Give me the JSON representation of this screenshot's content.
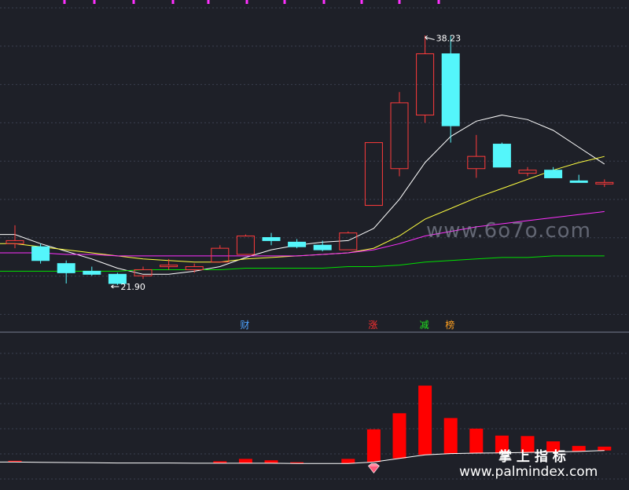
{
  "chart_data": [
    {
      "type": "candlestick",
      "panel": "price",
      "ylim": [
        20,
        40
      ],
      "grid": true,
      "candles": [
        {
          "o": 24.6,
          "h": 25.8,
          "l": 24.3,
          "c": 24.8,
          "color": "red"
        },
        {
          "o": 24.4,
          "h": 24.6,
          "l": 23.3,
          "c": 23.5,
          "color": "cyan"
        },
        {
          "o": 23.3,
          "h": 23.5,
          "l": 22.0,
          "c": 22.7,
          "color": "cyan"
        },
        {
          "o": 22.8,
          "h": 23.1,
          "l": 22.5,
          "c": 22.6,
          "color": "cyan"
        },
        {
          "o": 22.6,
          "h": 22.7,
          "l": 21.9,
          "c": 22.0,
          "color": "cyan"
        },
        {
          "o": 22.5,
          "h": 23.1,
          "l": 22.3,
          "c": 22.9,
          "color": "red"
        },
        {
          "o": 23.1,
          "h": 23.6,
          "l": 22.9,
          "c": 23.2,
          "color": "red"
        },
        {
          "o": 22.9,
          "h": 23.3,
          "l": 22.7,
          "c": 23.1,
          "color": "red"
        },
        {
          "o": 23.4,
          "h": 24.5,
          "l": 23.4,
          "c": 24.3,
          "color": "red"
        },
        {
          "o": 23.9,
          "h": 25.2,
          "l": 23.9,
          "c": 25.1,
          "color": "red"
        },
        {
          "o": 25.0,
          "h": 25.3,
          "l": 24.5,
          "c": 24.8,
          "color": "cyan"
        },
        {
          "o": 24.7,
          "h": 24.9,
          "l": 24.3,
          "c": 24.4,
          "color": "cyan"
        },
        {
          "o": 24.5,
          "h": 24.8,
          "l": 24.1,
          "c": 24.2,
          "color": "cyan"
        },
        {
          "o": 24.2,
          "h": 25.4,
          "l": 24.2,
          "c": 25.3,
          "color": "red"
        },
        {
          "o": 27.1,
          "h": 31.2,
          "l": 27.1,
          "c": 31.2,
          "color": "red"
        },
        {
          "o": 29.5,
          "h": 34.5,
          "l": 29.0,
          "c": 33.8,
          "color": "red"
        },
        {
          "o": 33.0,
          "h": 38.2,
          "l": 32.5,
          "c": 37.0,
          "color": "red"
        },
        {
          "o": 37.0,
          "h": 38.2,
          "l": 31.2,
          "c": 32.3,
          "color": "cyan"
        },
        {
          "o": 29.5,
          "h": 31.7,
          "l": 28.9,
          "c": 30.3,
          "color": "red"
        },
        {
          "o": 31.1,
          "h": 31.2,
          "l": 29.6,
          "c": 29.6,
          "color": "cyan"
        },
        {
          "o": 29.4,
          "h": 29.6,
          "l": 29.0,
          "c": 29.2,
          "color": "red"
        },
        {
          "o": 29.4,
          "h": 29.6,
          "l": 28.9,
          "c": 28.9,
          "color": "cyan"
        },
        {
          "o": 28.7,
          "h": 29.1,
          "l": 28.6,
          "c": 28.6,
          "color": "cyan"
        },
        {
          "o": 28.6,
          "h": 28.8,
          "l": 28.3,
          "c": 28.5,
          "color": "red"
        }
      ],
      "series": [
        {
          "color": "#ffffff",
          "values": [
            25.2,
            24.6,
            24.1,
            23.6,
            23.0,
            22.6,
            22.6,
            22.8,
            23.1,
            23.7,
            24.2,
            24.5,
            24.7,
            24.8,
            25.6,
            27.5,
            29.9,
            31.6,
            32.6,
            33.0,
            32.7,
            32.0,
            30.9,
            29.8
          ]
        },
        {
          "color": "#ffff40",
          "values": [
            24.6,
            24.4,
            24.2,
            24.0,
            23.8,
            23.6,
            23.5,
            23.4,
            23.4,
            23.6,
            23.7,
            23.8,
            23.9,
            24.0,
            24.3,
            25.1,
            26.2,
            26.9,
            27.6,
            28.2,
            28.8,
            29.4,
            29.9,
            30.3
          ]
        },
        {
          "color": "#ff30ff",
          "values": [
            24.0,
            24.0,
            23.9,
            23.9,
            23.8,
            23.8,
            23.8,
            23.8,
            23.8,
            23.8,
            23.8,
            23.8,
            23.9,
            24.0,
            24.2,
            24.6,
            25.1,
            25.4,
            25.7,
            25.9,
            26.1,
            26.3,
            26.5,
            26.7
          ]
        },
        {
          "color": "#00e000",
          "values": [
            22.8,
            22.8,
            22.8,
            22.8,
            22.8,
            22.9,
            22.9,
            22.9,
            22.9,
            23.0,
            23.0,
            23.0,
            23.0,
            23.1,
            23.1,
            23.2,
            23.4,
            23.5,
            23.6,
            23.7,
            23.7,
            23.8,
            23.8,
            23.8
          ]
        }
      ],
      "annotations": [
        {
          "text": "38.23",
          "index": 16,
          "value": 38.23,
          "direction": "right"
        },
        {
          "text": "21.90",
          "index": 4,
          "value": 21.9,
          "direction": "left"
        }
      ],
      "markers": [
        {
          "text": "财",
          "index": 9,
          "color": "#4da3ff"
        },
        {
          "text": "涨",
          "index": 14,
          "color": "#ff3030"
        },
        {
          "text": "减",
          "index": 16,
          "color": "#20e020"
        },
        {
          "text": "榜",
          "index": 17,
          "color": "#ffa020"
        }
      ]
    },
    {
      "type": "bar",
      "panel": "indicator",
      "ylim": [
        -1,
        50
      ],
      "grid": true,
      "values": [
        0.5,
        0,
        0,
        0,
        0,
        0,
        0,
        0,
        0.8,
        1.8,
        1.2,
        0.5,
        0,
        1.9,
        13.6,
        18.8,
        28.8,
        14.8,
        10.2,
        7.2,
        6.8,
        4.4,
        2.3,
        1.6
      ],
      "baseline": [
        1.5,
        1.4,
        1.3,
        1.2,
        1.1,
        1.1,
        1.1,
        1.0,
        1.0,
        1.0,
        1.0,
        0.9,
        0.9,
        0.9,
        1.5,
        3.0,
        4.5,
        5.0,
        5.2,
        5.3,
        5.5,
        5.7,
        5.9,
        6.3
      ],
      "baseline_color": "#ffffff",
      "bar_color": "#ff0000",
      "marker_icon": "diamond-icon",
      "marker_index": 14
    }
  ],
  "watermarks": {
    "top": "www.6o7o.com",
    "bottom_cn": "掌 上 指 标",
    "bottom_url": "www.palmindex.com"
  },
  "colors": {
    "background": "#1e2028",
    "up": "#ff3b3b",
    "down": "#54f6fb",
    "grid": "#3a3f4f",
    "divider": "#5a5f6f"
  }
}
